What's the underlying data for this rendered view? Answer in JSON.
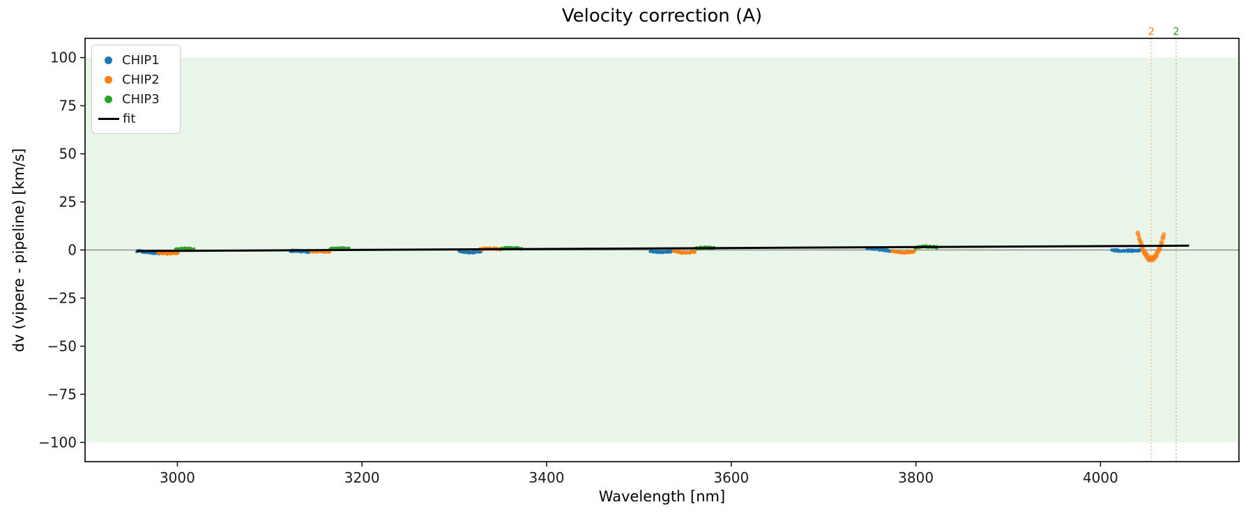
{
  "chart_data": {
    "type": "scatter",
    "title": "Velocity correction (A)",
    "xlabel": "Wavelength [nm]",
    "ylabel": "dv (vipere - pipeline) [km/s]",
    "xlim": [
      2900,
      4150
    ],
    "ylim": [
      -110,
      110
    ],
    "grid": false,
    "xticks": [
      3000,
      3200,
      3400,
      3600,
      3800,
      4000
    ],
    "yticks": [
      {
        "v": 100,
        "label": "100"
      },
      {
        "v": 75,
        "label": "75"
      },
      {
        "v": 50,
        "label": "50"
      },
      {
        "v": 25,
        "label": "25"
      },
      {
        "v": 0,
        "label": "0"
      },
      {
        "v": -25,
        "label": "−25"
      },
      {
        "v": -50,
        "label": "−50"
      },
      {
        "v": -75,
        "label": "−75"
      },
      {
        "v": -100,
        "label": "−100"
      }
    ],
    "shaded_band": {
      "v_from": -100,
      "v_to": 100,
      "color": "#eaf5ea"
    },
    "zero_line": {
      "v": 0,
      "color": "#808080",
      "width": 1.2
    },
    "legend": {
      "position": "upper-left",
      "items": [
        {
          "label": "CHIP1",
          "marker": "dot",
          "color": "#1f77b4"
        },
        {
          "label": "CHIP2",
          "marker": "dot",
          "color": "#ff7f0e"
        },
        {
          "label": "CHIP3",
          "marker": "dot",
          "color": "#2ca02c"
        },
        {
          "label": "fit",
          "marker": "line",
          "color": "#000000"
        }
      ]
    },
    "series": [
      {
        "name": "CHIP1",
        "color": "#1f77b4",
        "segments": [
          {
            "wl": [
              2956,
              2980
            ],
            "v": [
              -0.6,
              -1.1,
              -1.8
            ]
          },
          {
            "wl": [
              3122,
              3143
            ],
            "v": [
              -0.4,
              -0.6,
              -0.9
            ]
          },
          {
            "wl": [
              3305,
              3329
            ],
            "v": [
              -0.5,
              -1.2,
              -0.7
            ]
          },
          {
            "wl": [
              3512,
              3536
            ],
            "v": [
              -0.4,
              -1.0,
              -0.6
            ]
          },
          {
            "wl": [
              3747,
              3773
            ],
            "v": [
              0.7,
              0.3,
              -0.5
            ]
          },
          {
            "wl": [
              4012,
              4043
            ],
            "v": [
              -0.1,
              -0.4,
              -0.2
            ]
          }
        ]
      },
      {
        "name": "CHIP2",
        "color": "#ff7f0e",
        "segments": [
          {
            "wl": [
              2978,
              3001
            ],
            "v": [
              -1.2,
              -1.8,
              -1.4
            ]
          },
          {
            "wl": [
              3144,
              3165
            ],
            "v": [
              -0.6,
              -1.0,
              -0.7
            ]
          },
          {
            "wl": [
              3328,
              3350
            ],
            "v": [
              0.4,
              0.7,
              0.4
            ]
          },
          {
            "wl": [
              3537,
              3561
            ],
            "v": [
              -0.5,
              -1.4,
              -0.8
            ]
          },
          {
            "wl": [
              3774,
              3799
            ],
            "v": [
              -0.4,
              -1.3,
              -0.6
            ]
          },
          {
            "wl": [
              4040,
              4069
            ],
            "v": [
              9.5,
              -4.5,
              8.5
            ],
            "spread": 1.2,
            "alpha": 0.28,
            "r": 3.1,
            "n": 150
          }
        ]
      },
      {
        "name": "CHIP3",
        "color": "#2ca02c",
        "segments": [
          {
            "wl": [
              2998,
              3018
            ],
            "v": [
              0.3,
              0.6,
              0.4
            ]
          },
          {
            "wl": [
              3165,
              3186
            ],
            "v": [
              0.5,
              0.8,
              0.6
            ]
          },
          {
            "wl": [
              3350,
              3373
            ],
            "v": [
              0.6,
              1.0,
              0.7
            ]
          },
          {
            "wl": [
              3561,
              3582
            ],
            "v": [
              0.8,
              1.2,
              0.9
            ]
          },
          {
            "wl": [
              3799,
              3823
            ],
            "v": [
              1.3,
              1.8,
              1.4
            ]
          }
        ]
      }
    ],
    "fit": {
      "name": "fit",
      "color": "#000000",
      "width": 3,
      "wl": [
        2956,
        4096
      ],
      "v": [
        -0.55,
        2.25
      ]
    },
    "vlines": [
      {
        "wl": 4055,
        "label": "2",
        "color": "#ff7f0e"
      },
      {
        "wl": 4082,
        "label": "2",
        "color": "#2ca02c"
      }
    ]
  }
}
